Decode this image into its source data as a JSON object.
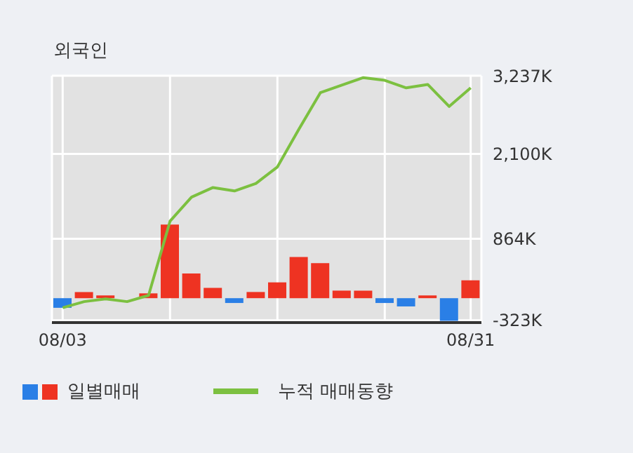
{
  "chart_data": {
    "type": "bar",
    "title": "외국인",
    "categories": [
      "08/03",
      null,
      null,
      null,
      null,
      null,
      null,
      null,
      null,
      null,
      null,
      null,
      null,
      null,
      null,
      null,
      null,
      null,
      null,
      "08/31"
    ],
    "series": [
      {
        "name": "일별매매",
        "colors": [
          "#2a7fe6",
          "#ee3322",
          "#ee3322",
          "#ee3322",
          "#ee3322",
          "#ee3322",
          "#ee3322",
          "#ee3322",
          "#2a7fe6",
          "#ee3322",
          "#ee3322",
          "#ee3322",
          "#ee3322",
          "#ee3322",
          "#ee3322",
          "#2a7fe6",
          "#2a7fe6",
          "#ee3322",
          "#2a7fe6",
          "#ee3322"
        ],
        "values": [
          -140,
          90,
          40,
          0,
          70,
          1070,
          360,
          150,
          -70,
          90,
          230,
          600,
          510,
          110,
          110,
          -70,
          -120,
          40,
          -330,
          260
        ]
      },
      {
        "name": "누적 매매동향",
        "type": "line",
        "color": "#7cc040",
        "values": [
          -140,
          -50,
          -10,
          -50,
          40,
          1120,
          1470,
          1610,
          1560,
          1670,
          1910,
          2460,
          2990,
          3100,
          3210,
          3170,
          3060,
          3110,
          2790,
          3060
        ]
      }
    ],
    "ylim": [
      -355,
      3237
    ],
    "yticks": [
      {
        "value": -323,
        "label": "-323K"
      },
      {
        "value": 864,
        "label": "864K"
      },
      {
        "value": 2100,
        "label": "2,100K"
      },
      {
        "value": 3237,
        "label": "3,237K"
      }
    ],
    "grid": true,
    "legend": "bottom",
    "marker": "none"
  }
}
